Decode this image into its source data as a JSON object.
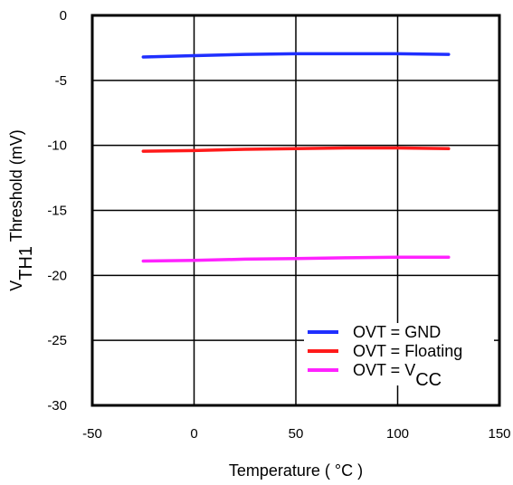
{
  "chart_data": {
    "type": "line",
    "title": "",
    "xlabel": "Temperature ( °C )",
    "ylabel": {
      "main": "V",
      "sub": "TH1",
      "rest": " Threshold (mV)"
    },
    "xlim": [
      -50,
      150
    ],
    "ylim": [
      -30,
      0
    ],
    "xticks": [
      -50,
      0,
      50,
      100,
      150
    ],
    "yticks": [
      0,
      -5,
      -10,
      -15,
      -20,
      -25,
      -30
    ],
    "grid": true,
    "legend_position": "bottom-right",
    "series": [
      {
        "name": "OVT = GND",
        "color": "#1f2fff",
        "x": [
          -25,
          0,
          25,
          50,
          75,
          100,
          125
        ],
        "y": [
          -3.2,
          -3.1,
          -3.0,
          -2.95,
          -2.95,
          -2.95,
          -3.0
        ]
      },
      {
        "name": "OVT = Floating",
        "color": "#ff1a1a",
        "x": [
          -25,
          0,
          25,
          50,
          75,
          100,
          125
        ],
        "y": [
          -10.45,
          -10.4,
          -10.3,
          -10.25,
          -10.2,
          -10.2,
          -10.25
        ]
      },
      {
        "name": {
          "main": "OVT = V",
          "sub": "CC"
        },
        "color": "#ff22ff",
        "x": [
          -25,
          0,
          25,
          50,
          75,
          100,
          125
        ],
        "y": [
          -18.9,
          -18.85,
          -18.75,
          -18.7,
          -18.65,
          -18.6,
          -18.6
        ]
      }
    ]
  }
}
